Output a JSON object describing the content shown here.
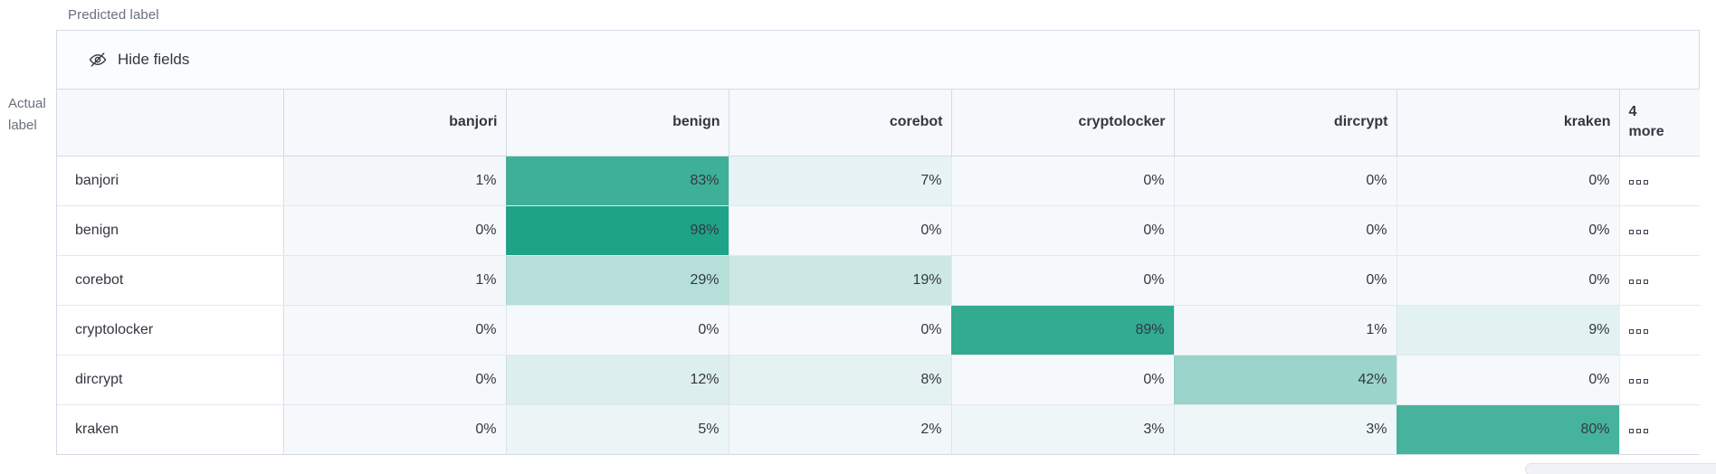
{
  "axis": {
    "predicted_label": "Predicted label",
    "actual_label_line1": "Actual",
    "actual_label_line2": "label"
  },
  "toolbar": {
    "hide_fields_label": "Hide fields"
  },
  "chart_data": {
    "type": "heatmap",
    "x_axis_label": "Predicted label",
    "y_axis_label": "Actual label",
    "columns": [
      "banjori",
      "benign",
      "corebot",
      "cryptolocker",
      "dircrypt",
      "kraken"
    ],
    "rows": [
      "banjori",
      "benign",
      "corebot",
      "cryptolocker",
      "dircrypt",
      "kraken"
    ],
    "values_percent": [
      [
        1,
        83,
        7,
        0,
        0,
        0
      ],
      [
        0,
        98,
        0,
        0,
        0,
        0
      ],
      [
        1,
        29,
        19,
        0,
        0,
        0
      ],
      [
        0,
        0,
        0,
        89,
        1,
        9
      ],
      [
        0,
        12,
        8,
        0,
        42,
        0
      ],
      [
        0,
        5,
        2,
        3,
        3,
        80
      ]
    ],
    "value_suffix": "%",
    "hidden_columns_header": "4\nmore",
    "more_cell_icon": "boxes-horizontal-icon",
    "color_scale": {
      "min_color": "#f6f9fc",
      "max_color": "#1aa184",
      "domain": [
        0,
        100
      ]
    }
  }
}
